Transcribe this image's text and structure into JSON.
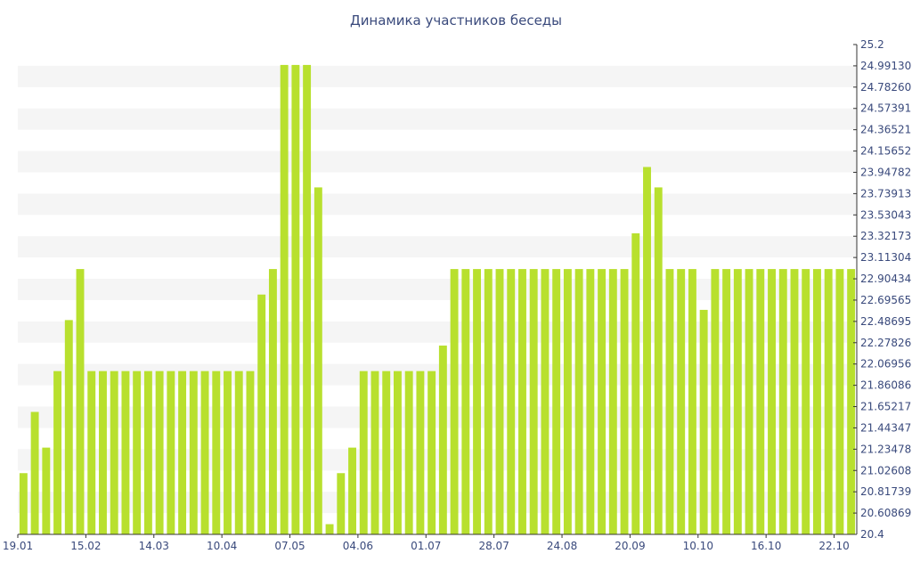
{
  "chart_data": {
    "type": "bar",
    "title": "Динамика участников беседы",
    "xlabel": "",
    "ylabel": "",
    "ylim": [
      20.4,
      25.2
    ],
    "y_axis_position": "right",
    "grid": "horizontal-bands",
    "bar_color": "#b8e02e",
    "band_color": "#f5f5f5",
    "text_color": "#3a4a7c",
    "y_tick_labels": [
      "20.4",
      "20.60869",
      "20.81739",
      "21.02608",
      "21.23478",
      "21.44347",
      "21.65217",
      "21.86086",
      "22.06956",
      "22.27826",
      "22.48695",
      "22.69565",
      "22.90434",
      "23.11304",
      "23.32173",
      "23.53043",
      "23.73913",
      "23.94782",
      "24.15652",
      "24.36521",
      "24.57391",
      "24.78260",
      "24.99130",
      "25.2"
    ],
    "x_tick_labels": [
      {
        "label": "19.01",
        "index": 0
      },
      {
        "label": "15.02",
        "index": 6
      },
      {
        "label": "14.03",
        "index": 12
      },
      {
        "label": "10.04",
        "index": 18
      },
      {
        "label": "07.05",
        "index": 24
      },
      {
        "label": "04.06",
        "index": 30
      },
      {
        "label": "01.07",
        "index": 36
      },
      {
        "label": "28.07",
        "index": 42
      },
      {
        "label": "24.08",
        "index": 48
      },
      {
        "label": "20.09",
        "index": 54
      },
      {
        "label": "10.10",
        "index": 60
      },
      {
        "label": "16.10",
        "index": 66
      },
      {
        "label": "22.10",
        "index": 72
      }
    ],
    "values": [
      21,
      21.6,
      21.25,
      22,
      22.5,
      23,
      22,
      22,
      22,
      22,
      22,
      22,
      22,
      22,
      22,
      22,
      22,
      22,
      22,
      22,
      22,
      22.75,
      23,
      25,
      25,
      25,
      23.8,
      20.5,
      21,
      21.25,
      22,
      22,
      22,
      22,
      22,
      22,
      22,
      22.25,
      23,
      23,
      23,
      23,
      23,
      23,
      23,
      23,
      23,
      23,
      23,
      23,
      23,
      23,
      23,
      23,
      23.35,
      24,
      23.8,
      23,
      23,
      23,
      22.6,
      23,
      23,
      23,
      23,
      23,
      23,
      23,
      23,
      23,
      23,
      23,
      23,
      23
    ]
  }
}
